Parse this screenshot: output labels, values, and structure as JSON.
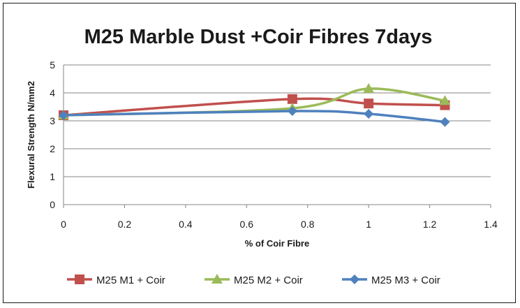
{
  "chart_data": {
    "type": "line",
    "title": "M25 Marble Dust +Coir Fibres 7days",
    "xlabel": "% of Coir Fibre",
    "ylabel": "Flexural Strength  N/mm2",
    "xlim": [
      0,
      1.4
    ],
    "ylim": [
      0,
      5
    ],
    "xticks": [
      "0",
      "0.2",
      "0.4",
      "0.6",
      "0.8",
      "1",
      "1.2",
      "1.4"
    ],
    "yticks": [
      "0",
      "1",
      "2",
      "3",
      "4",
      "5"
    ],
    "grid": "horizontal",
    "smooth": true,
    "legend_position": "bottom",
    "x": [
      0,
      0.75,
      1,
      1.25
    ],
    "series": [
      {
        "name": "M25 M1 + Coir",
        "values": [
          3.2,
          3.78,
          3.62,
          3.56
        ],
        "color": "#c0504d",
        "marker": "square"
      },
      {
        "name": "M25 M2 + Coir",
        "values": [
          3.2,
          3.45,
          4.15,
          3.72
        ],
        "color": "#9bbb59",
        "marker": "triangle"
      },
      {
        "name": "M25 M3 + Coir",
        "values": [
          3.2,
          3.35,
          3.25,
          2.96
        ],
        "color": "#4f81bd",
        "marker": "diamond"
      }
    ]
  }
}
